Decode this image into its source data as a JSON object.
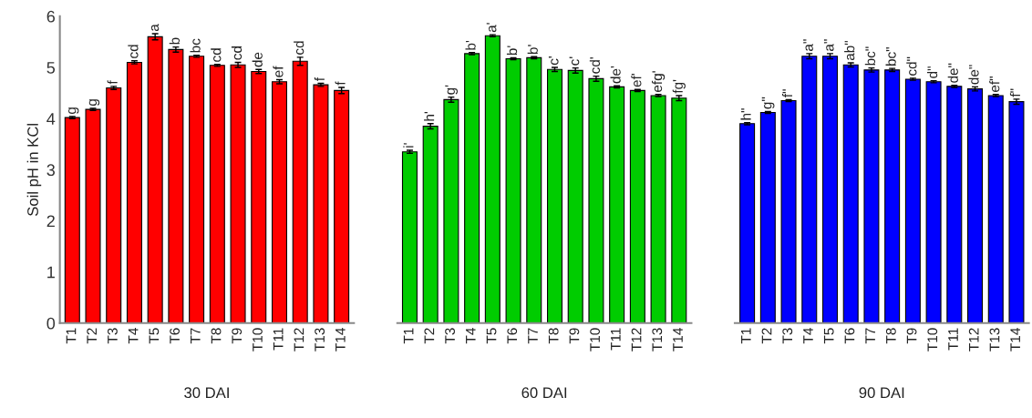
{
  "chart_data": [
    {
      "type": "bar",
      "xlabel": "30 DAI",
      "ylabel": "Soil pH in KCl",
      "categories": [
        "T1",
        "T2",
        "T3",
        "T4",
        "T5",
        "T6",
        "T7",
        "T8",
        "T9",
        "T10",
        "T11",
        "T12",
        "T13",
        "T14"
      ],
      "series": [
        {
          "color": "#ff0000",
          "values": [
            4.02,
            4.18,
            4.6,
            5.1,
            5.6,
            5.35,
            5.22,
            5.04,
            5.05,
            4.92,
            4.72,
            5.12,
            4.66,
            4.55
          ],
          "errors": [
            0.02,
            0.02,
            0.03,
            0.03,
            0.06,
            0.05,
            0.02,
            0.02,
            0.05,
            0.04,
            0.04,
            0.08,
            0.03,
            0.06
          ],
          "value_labels": [
            "g",
            "g",
            "f",
            "cd",
            "a",
            "b",
            "bc",
            "cd",
            "cd",
            "de",
            "ef",
            "cd",
            "f",
            "f"
          ]
        }
      ],
      "ylim": [
        0,
        6
      ],
      "yticks": [
        0,
        1,
        2,
        3,
        4,
        5,
        6
      ]
    },
    {
      "type": "bar",
      "xlabel": "60 DAI",
      "categories": [
        "T1",
        "T2",
        "T3",
        "T4",
        "T5",
        "T6",
        "T7",
        "T8",
        "T9",
        "T10",
        "T11",
        "T12",
        "T13",
        "T14"
      ],
      "series": [
        {
          "color": "#00cc00",
          "values": [
            3.35,
            3.85,
            4.37,
            5.27,
            5.62,
            5.17,
            5.19,
            4.96,
            4.94,
            4.78,
            4.62,
            4.55,
            4.45,
            4.4
          ],
          "errors": [
            0.03,
            0.05,
            0.05,
            0.02,
            0.02,
            0.02,
            0.02,
            0.04,
            0.05,
            0.05,
            0.02,
            0.02,
            0.02,
            0.05
          ],
          "value_labels": [
            "i'",
            "h'",
            "g'",
            "b'",
            "a'",
            "b'",
            "b'",
            "c'",
            "c'",
            "cd'",
            "de'",
            "ef'",
            "efg'",
            "fg'"
          ]
        }
      ],
      "ylim": [
        0,
        6
      ],
      "tick_labels": "x"
    },
    {
      "type": "bar",
      "xlabel": "90 DAI",
      "categories": [
        "T1",
        "T2",
        "T3",
        "T4",
        "T5",
        "T6",
        "T7",
        "T8",
        "T9",
        "T10",
        "T11",
        "T12",
        "T13",
        "T14"
      ],
      "series": [
        {
          "color": "#0000ff",
          "values": [
            3.9,
            4.12,
            4.35,
            5.22,
            5.22,
            5.05,
            4.95,
            4.95,
            4.77,
            4.72,
            4.63,
            4.58,
            4.45,
            4.33
          ],
          "errors": [
            0.02,
            0.02,
            0.02,
            0.05,
            0.05,
            0.04,
            0.04,
            0.03,
            0.02,
            0.02,
            0.02,
            0.04,
            0.02,
            0.05
          ],
          "value_labels": [
            "h\"",
            "g\"",
            "f\"",
            "a\"",
            "a\"",
            "ab\"",
            "bc\"",
            "bc\"",
            "cd\"",
            "d\"",
            "de\"",
            "de\"",
            "ef\"",
            "f\""
          ]
        }
      ],
      "ylim": [
        0,
        6
      ],
      "tick_labels": "x"
    }
  ]
}
